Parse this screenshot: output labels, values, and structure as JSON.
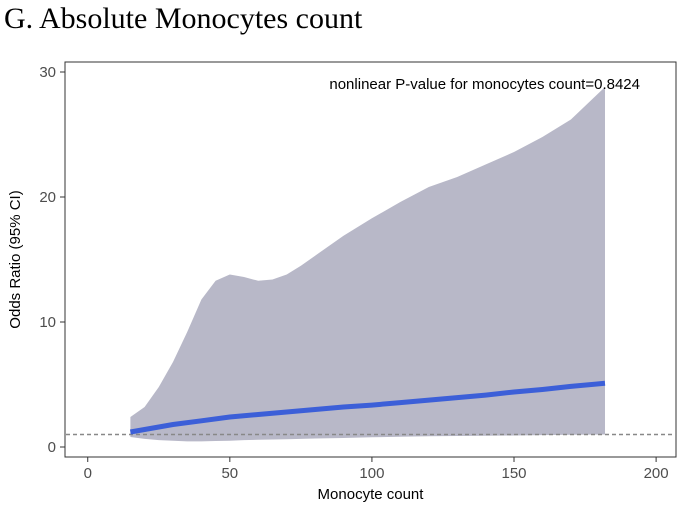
{
  "panel_title": "G. Absolute Monocytes count",
  "chart_data": {
    "type": "line",
    "title": "",
    "xlabel": "Monocyte count",
    "ylabel": "Odds Ratio (95% CI)",
    "xlim": [
      -8,
      207
    ],
    "ylim": [
      -0.8,
      30.8
    ],
    "x_ticks": [
      0,
      50,
      100,
      150,
      200
    ],
    "y_ticks": [
      0,
      10,
      20,
      30
    ],
    "grid": false,
    "reference_line": {
      "y": 1,
      "style": "dashed",
      "color": "#888888"
    },
    "annotation": "nonlinear P-value for monocytes count=0.8424",
    "series": [
      {
        "type": "line",
        "color": "#3c5fd8",
        "x": [
          15,
          20,
          30,
          40,
          50,
          60,
          70,
          80,
          90,
          100,
          110,
          120,
          130,
          140,
          150,
          160,
          170,
          182
        ],
        "y": [
          1.2,
          1.4,
          1.8,
          2.1,
          2.4,
          2.6,
          2.8,
          3.0,
          3.2,
          3.35,
          3.55,
          3.75,
          3.95,
          4.15,
          4.4,
          4.6,
          4.85,
          5.1
        ]
      },
      {
        "type": "ci_band",
        "color": "#b8b8c8",
        "x": [
          15,
          20,
          25,
          30,
          35,
          40,
          45,
          50,
          55,
          60,
          65,
          70,
          75,
          80,
          90,
          100,
          110,
          120,
          130,
          140,
          150,
          160,
          170,
          182
        ],
        "upper": [
          2.4,
          3.2,
          4.8,
          6.8,
          9.2,
          11.8,
          13.3,
          13.8,
          13.6,
          13.3,
          13.4,
          13.8,
          14.5,
          15.3,
          16.9,
          18.3,
          19.6,
          20.8,
          21.6,
          22.6,
          23.6,
          24.8,
          26.2,
          28.8
        ],
        "lower": [
          0.8,
          0.65,
          0.55,
          0.5,
          0.45,
          0.45,
          0.48,
          0.5,
          0.55,
          0.58,
          0.6,
          0.62,
          0.65,
          0.68,
          0.72,
          0.78,
          0.82,
          0.86,
          0.88,
          0.9,
          0.92,
          0.95,
          0.98,
          1.0
        ]
      }
    ]
  }
}
